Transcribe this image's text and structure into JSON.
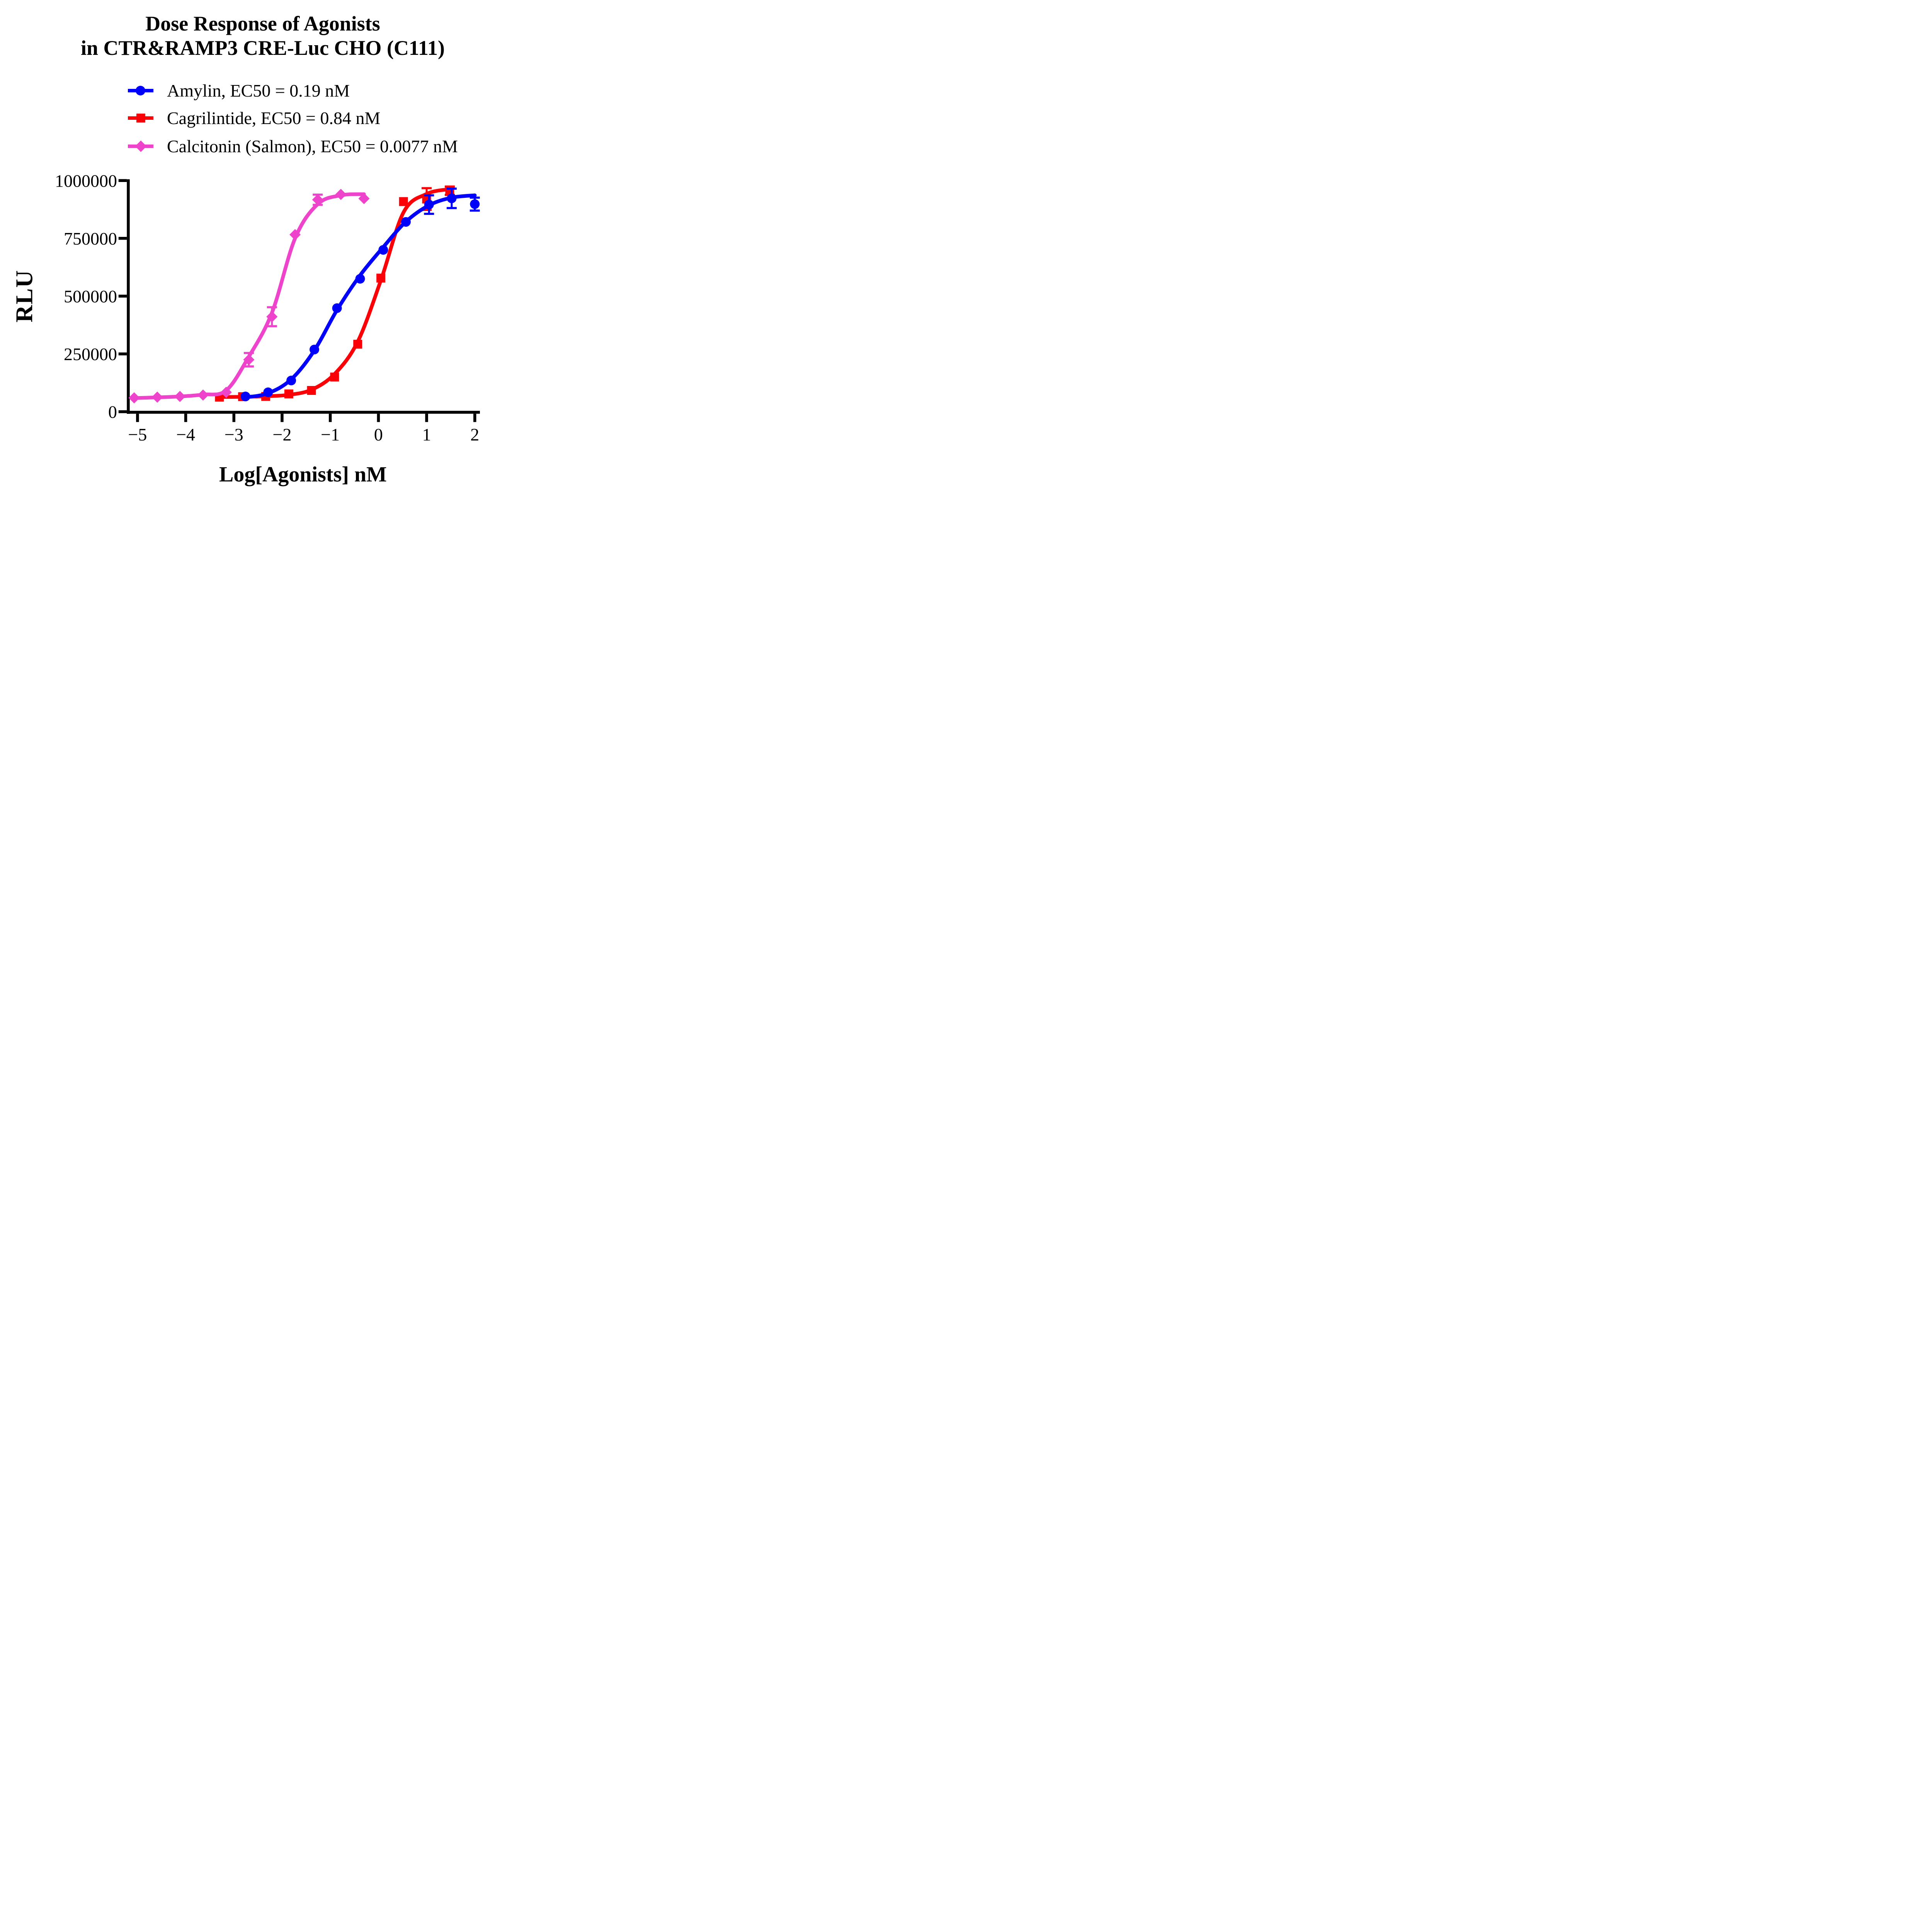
{
  "title": {
    "line1": "Dose Response of Agonists",
    "line2": "in CTR&RAMP3 CRE-Luc CHO (C111)"
  },
  "axes": {
    "x": {
      "label": "Log[Agonists] nM",
      "ticks": [
        -5,
        -4,
        -3,
        -2,
        -1,
        0,
        1,
        2
      ],
      "tick_labels": [
        "−5",
        "−4",
        "−3",
        "−2",
        "−1",
        "0",
        "1",
        "2"
      ]
    },
    "y": {
      "label": "RLU",
      "ticks": [
        0,
        250000,
        500000,
        750000,
        1000000
      ],
      "tick_labels": [
        "0",
        "250000",
        "500000",
        "750000",
        "1000000"
      ]
    }
  },
  "chart_data": {
    "type": "line",
    "title": "Dose Response of Agonists in CTR&RAMP3 CRE-Luc CHO (C111)",
    "xlabel": "Log[Agonists] nM",
    "ylabel": "RLU",
    "xlim": [
      -5.25,
      2.15
    ],
    "ylim": [
      0,
      1000000
    ],
    "grid": false,
    "legend_position": "top-left-below-title",
    "series": [
      {
        "name": "Amylin, EC50 = 0.19 nM",
        "ec50_nM": 0.19,
        "color": "#0000FE",
        "marker": "circle",
        "x": [
          -2.76,
          -2.29,
          -1.81,
          -1.33,
          -0.86,
          -0.38,
          0.1,
          0.57,
          1.05,
          1.52,
          2.0
        ],
        "y": [
          66000,
          84000,
          135000,
          269000,
          448000,
          575000,
          700000,
          821000,
          896000,
          923000,
          898000
        ],
        "yerr": [
          0,
          0,
          0,
          0,
          0,
          0,
          0,
          0,
          40000,
          42000,
          28000
        ],
        "curve_y": [
          62000,
          80000,
          140000,
          265000,
          440000,
          590000,
          712000,
          822000,
          893000,
          926000,
          936000
        ]
      },
      {
        "name": "Cagrilintide, EC50 = 0.84 nM",
        "ec50_nM": 0.84,
        "color": "#FB0007",
        "marker": "square",
        "x": [
          -3.3,
          -2.82,
          -2.34,
          -1.86,
          -1.39,
          -0.91,
          -0.43,
          0.05,
          0.52,
          1.0,
          1.48
        ],
        "y": [
          63000,
          65000,
          66000,
          77000,
          92000,
          150000,
          292000,
          578000,
          909000,
          920000,
          956000
        ],
        "yerr": [
          0,
          0,
          0,
          0,
          0,
          0,
          0,
          0,
          0,
          47000,
          18000
        ],
        "curve_y": [
          63500,
          64500,
          67000,
          73000,
          95000,
          163000,
          303000,
          568000,
          862000,
          942000,
          963000
        ]
      },
      {
        "name": "Calcitonin (Salmon), EC50 = 0.0077 nM",
        "ec50_nM": 0.0077,
        "color": "#EE44CC",
        "marker": "diamond",
        "x": [
          -5.07,
          -4.59,
          -4.12,
          -3.64,
          -3.16,
          -2.69,
          -2.21,
          -1.73,
          -1.26,
          -0.78,
          -0.3
        ],
        "y": [
          60000,
          63000,
          66000,
          72000,
          84000,
          225000,
          411000,
          766000,
          917000,
          940000,
          922000
        ],
        "yerr": [
          0,
          0,
          0,
          0,
          0,
          29000,
          41000,
          0,
          22000,
          0,
          0
        ],
        "curve_y": [
          59000,
          62000,
          66000,
          74000,
          92000,
          238000,
          428000,
          750000,
          898000,
          936000,
          941000
        ]
      }
    ],
    "draw_order": [
      1,
      0,
      2
    ]
  }
}
